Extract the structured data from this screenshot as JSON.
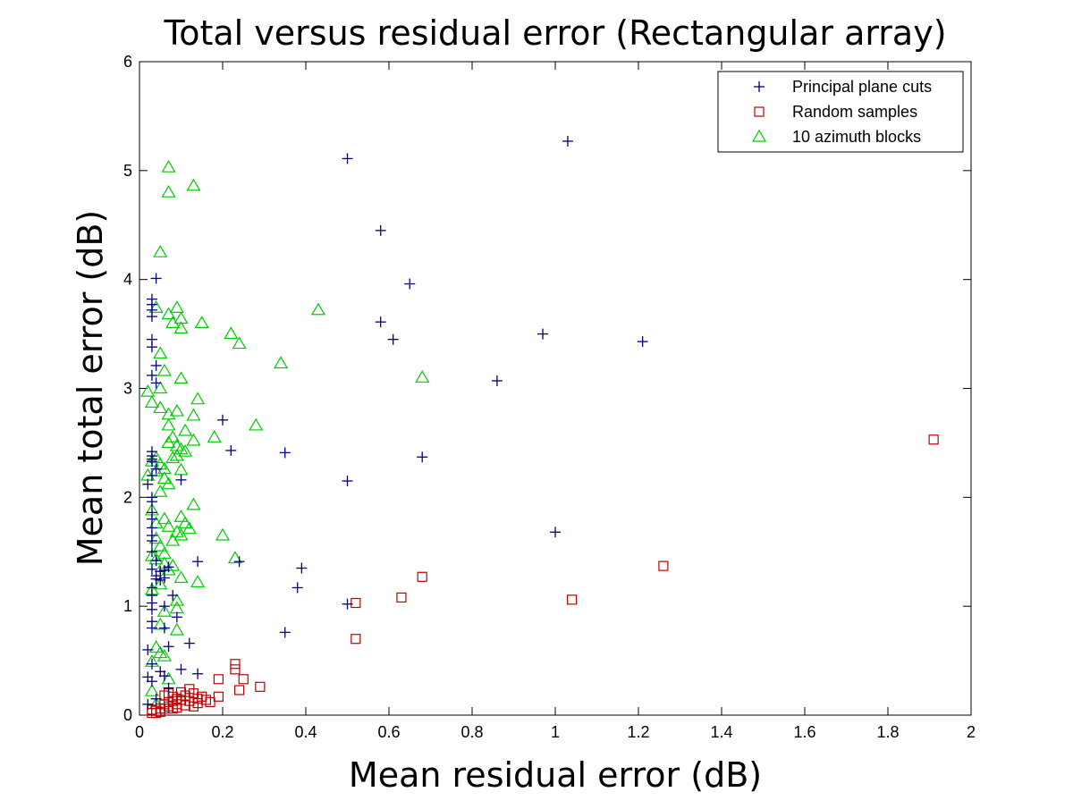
{
  "chart_data": {
    "type": "scatter",
    "title": "Total versus residual error (Rectangular array)",
    "xlabel": "Mean residual error (dB)",
    "ylabel": "Mean total error (dB)",
    "xlim": [
      0,
      2
    ],
    "ylim": [
      0,
      6
    ],
    "xticks": [
      0,
      0.2,
      0.4,
      0.6,
      0.8,
      1,
      1.2,
      1.4,
      1.6,
      1.8,
      2
    ],
    "xtick_labels": [
      "0",
      "0.2",
      "0.4",
      "0.6",
      "0.8",
      "1",
      "1.2",
      "1.4",
      "1.6",
      "1.8",
      "2"
    ],
    "yticks": [
      0,
      1,
      2,
      3,
      4,
      5,
      6
    ],
    "ytick_labels": [
      "0",
      "1",
      "2",
      "3",
      "4",
      "5",
      "6"
    ],
    "grid": false,
    "legend_position": "top-right",
    "series": [
      {
        "name": "Principal plane cuts",
        "marker": "plus",
        "color": "#00007f",
        "points": [
          [
            1.03,
            5.27
          ],
          [
            0.5,
            5.11
          ],
          [
            0.58,
            4.45
          ],
          [
            0.65,
            3.96
          ],
          [
            0.04,
            4.01
          ],
          [
            0.58,
            3.61
          ],
          [
            0.61,
            3.45
          ],
          [
            0.97,
            3.5
          ],
          [
            1.21,
            3.43
          ],
          [
            0.86,
            3.07
          ],
          [
            0.2,
            2.71
          ],
          [
            0.22,
            2.43
          ],
          [
            0.35,
            2.41
          ],
          [
            0.68,
            2.37
          ],
          [
            0.5,
            2.15
          ],
          [
            0.1,
            2.16
          ],
          [
            1.0,
            1.68
          ],
          [
            0.14,
            1.41
          ],
          [
            0.24,
            1.41
          ],
          [
            0.39,
            1.35
          ],
          [
            0.38,
            1.17
          ],
          [
            0.5,
            1.02
          ],
          [
            0.35,
            0.76
          ],
          [
            0.12,
            0.66
          ],
          [
            0.07,
            0.63
          ],
          [
            0.14,
            0.38
          ],
          [
            0.1,
            0.42
          ],
          [
            0.03,
            3.82
          ],
          [
            0.03,
            3.77
          ],
          [
            0.03,
            3.72
          ],
          [
            0.03,
            3.66
          ],
          [
            0.03,
            3.45
          ],
          [
            0.03,
            3.38
          ],
          [
            0.04,
            3.21
          ],
          [
            0.03,
            3.12
          ],
          [
            0.04,
            3.05
          ],
          [
            0.03,
            2.42
          ],
          [
            0.03,
            2.38
          ],
          [
            0.03,
            2.35
          ],
          [
            0.03,
            2.33
          ],
          [
            0.04,
            2.26
          ],
          [
            0.03,
            2.2
          ],
          [
            0.02,
            2.12
          ],
          [
            0.03,
            2.0
          ],
          [
            0.03,
            1.96
          ],
          [
            0.03,
            1.86
          ],
          [
            0.03,
            1.8
          ],
          [
            0.03,
            1.72
          ],
          [
            0.03,
            1.65
          ],
          [
            0.03,
            1.6
          ],
          [
            0.03,
            1.5
          ],
          [
            0.04,
            1.42
          ],
          [
            0.03,
            1.34
          ],
          [
            0.04,
            1.28
          ],
          [
            0.04,
            1.25
          ],
          [
            0.03,
            1.17
          ],
          [
            0.03,
            1.1
          ],
          [
            0.03,
            1.03
          ],
          [
            0.03,
            0.97
          ],
          [
            0.03,
            0.86
          ],
          [
            0.03,
            0.8
          ],
          [
            0.02,
            0.6
          ],
          [
            0.03,
            0.47
          ],
          [
            0.02,
            0.35
          ],
          [
            0.03,
            0.31
          ],
          [
            0.02,
            0.1
          ],
          [
            0.05,
            1.32
          ],
          [
            0.05,
            1.24
          ],
          [
            0.06,
            1.33
          ],
          [
            0.06,
            1.26
          ],
          [
            0.07,
            1.36
          ],
          [
            0.06,
            1.0
          ],
          [
            0.08,
            1.1
          ],
          [
            0.06,
            0.8
          ],
          [
            0.09,
            0.9
          ],
          [
            0.05,
            0.4
          ],
          [
            0.06,
            0.36
          ],
          [
            0.04,
            0.15
          ],
          [
            0.07,
            0.25
          ]
        ]
      },
      {
        "name": "Random samples",
        "marker": "square",
        "color": "#bf0000",
        "points": [
          [
            1.91,
            2.53
          ],
          [
            1.26,
            1.37
          ],
          [
            0.68,
            1.27
          ],
          [
            1.04,
            1.06
          ],
          [
            0.63,
            1.08
          ],
          [
            0.52,
            1.03
          ],
          [
            0.52,
            0.7
          ],
          [
            0.23,
            0.47
          ],
          [
            0.23,
            0.42
          ],
          [
            0.25,
            0.33
          ],
          [
            0.29,
            0.26
          ],
          [
            0.24,
            0.23
          ],
          [
            0.19,
            0.33
          ],
          [
            0.19,
            0.17
          ],
          [
            0.16,
            0.14
          ],
          [
            0.17,
            0.12
          ],
          [
            0.14,
            0.15
          ],
          [
            0.12,
            0.13
          ],
          [
            0.13,
            0.2
          ],
          [
            0.12,
            0.24
          ],
          [
            0.11,
            0.18
          ],
          [
            0.1,
            0.21
          ],
          [
            0.1,
            0.14
          ],
          [
            0.09,
            0.1
          ],
          [
            0.08,
            0.13
          ],
          [
            0.08,
            0.17
          ],
          [
            0.07,
            0.12
          ],
          [
            0.07,
            0.08
          ],
          [
            0.06,
            0.1
          ],
          [
            0.06,
            0.06
          ],
          [
            0.05,
            0.06
          ],
          [
            0.05,
            0.03
          ],
          [
            0.04,
            0.04
          ],
          [
            0.04,
            0.02
          ],
          [
            0.03,
            0.02
          ],
          [
            0.03,
            0.05
          ],
          [
            0.06,
            0.18
          ],
          [
            0.08,
            0.06
          ],
          [
            0.09,
            0.15
          ],
          [
            0.11,
            0.09
          ],
          [
            0.13,
            0.08
          ],
          [
            0.14,
            0.11
          ],
          [
            0.15,
            0.17
          ],
          [
            0.09,
            0.07
          ],
          [
            0.07,
            0.2
          ]
        ]
      },
      {
        "name": "10 azimuth blocks",
        "marker": "triangle",
        "color": "#00cc00",
        "points": [
          [
            0.07,
            5.03
          ],
          [
            0.13,
            4.86
          ],
          [
            0.07,
            4.8
          ],
          [
            0.05,
            4.25
          ],
          [
            0.43,
            3.72
          ],
          [
            0.09,
            3.74
          ],
          [
            0.04,
            3.74
          ],
          [
            0.07,
            3.68
          ],
          [
            0.1,
            3.64
          ],
          [
            0.08,
            3.6
          ],
          [
            0.1,
            3.55
          ],
          [
            0.15,
            3.6
          ],
          [
            0.22,
            3.5
          ],
          [
            0.24,
            3.41
          ],
          [
            0.05,
            3.32
          ],
          [
            0.34,
            3.23
          ],
          [
            0.06,
            3.16
          ],
          [
            0.1,
            3.09
          ],
          [
            0.68,
            3.1
          ],
          [
            0.05,
            3.0
          ],
          [
            0.02,
            2.97
          ],
          [
            0.14,
            2.9
          ],
          [
            0.03,
            2.87
          ],
          [
            0.05,
            2.82
          ],
          [
            0.09,
            2.79
          ],
          [
            0.07,
            2.76
          ],
          [
            0.13,
            2.75
          ],
          [
            0.28,
            2.66
          ],
          [
            0.07,
            2.66
          ],
          [
            0.11,
            2.61
          ],
          [
            0.08,
            2.55
          ],
          [
            0.18,
            2.55
          ],
          [
            0.13,
            2.52
          ],
          [
            0.07,
            2.5
          ],
          [
            0.09,
            2.47
          ],
          [
            0.1,
            2.44
          ],
          [
            0.11,
            2.42
          ],
          [
            0.09,
            2.38
          ],
          [
            0.08,
            2.36
          ],
          [
            0.04,
            2.36
          ],
          [
            0.03,
            2.33
          ],
          [
            0.05,
            2.3
          ],
          [
            0.06,
            2.26
          ],
          [
            0.04,
            2.24
          ],
          [
            0.1,
            2.25
          ],
          [
            0.02,
            2.2
          ],
          [
            0.06,
            2.17
          ],
          [
            0.07,
            2.12
          ],
          [
            0.05,
            2.05
          ],
          [
            0.13,
            1.93
          ],
          [
            0.03,
            1.88
          ],
          [
            0.06,
            1.8
          ],
          [
            0.1,
            1.82
          ],
          [
            0.11,
            1.76
          ],
          [
            0.04,
            1.76
          ],
          [
            0.07,
            1.73
          ],
          [
            0.12,
            1.71
          ],
          [
            0.09,
            1.68
          ],
          [
            0.1,
            1.65
          ],
          [
            0.2,
            1.65
          ],
          [
            0.04,
            1.62
          ],
          [
            0.08,
            1.6
          ],
          [
            0.05,
            1.55
          ],
          [
            0.06,
            1.48
          ],
          [
            0.03,
            1.46
          ],
          [
            0.04,
            1.43
          ],
          [
            0.23,
            1.44
          ],
          [
            0.06,
            1.39
          ],
          [
            0.08,
            1.37
          ],
          [
            0.07,
            1.33
          ],
          [
            0.1,
            1.26
          ],
          [
            0.14,
            1.22
          ],
          [
            0.05,
            1.2
          ],
          [
            0.03,
            1.15
          ],
          [
            0.09,
            1.05
          ],
          [
            0.09,
            0.98
          ],
          [
            0.06,
            0.95
          ],
          [
            0.05,
            0.83
          ],
          [
            0.09,
            0.78
          ],
          [
            0.04,
            0.62
          ],
          [
            0.05,
            0.57
          ],
          [
            0.06,
            0.54
          ],
          [
            0.03,
            0.49
          ],
          [
            0.07,
            0.33
          ],
          [
            0.03,
            0.22
          ],
          [
            0.04,
            0.1
          ]
        ]
      }
    ]
  }
}
